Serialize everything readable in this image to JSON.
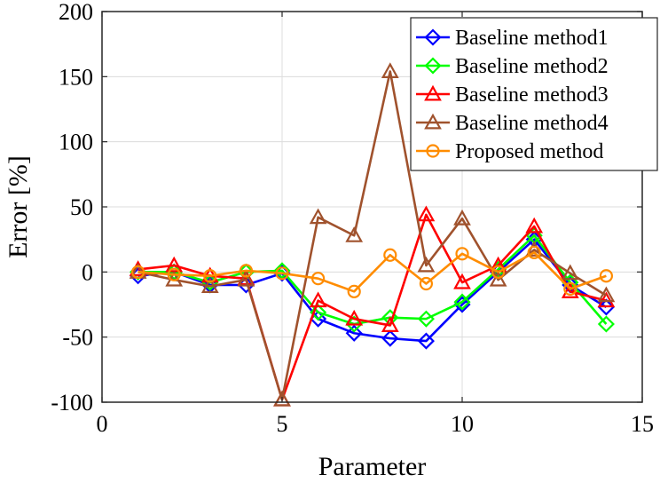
{
  "chart_data": {
    "type": "line",
    "xlabel": "Parameter",
    "ylabel": "Error [%]",
    "xlim": [
      0,
      15
    ],
    "ylim": [
      -100,
      200
    ],
    "xticks": [
      0,
      5,
      10,
      15
    ],
    "yticks": [
      -100,
      -50,
      0,
      50,
      100,
      150,
      200
    ],
    "grid": true,
    "legend_position": "top-right",
    "series": [
      {
        "name": "Baseline method1",
        "color": "#0000ff",
        "marker": "diamond",
        "x": [
          1,
          2,
          3,
          4,
          5,
          6,
          7,
          8,
          9,
          10,
          11,
          12,
          13,
          14
        ],
        "values": [
          -3,
          0,
          -10,
          -10,
          -1,
          -36,
          -47,
          -51,
          -53,
          -25,
          0,
          25,
          -10,
          -27
        ]
      },
      {
        "name": "Baseline method2",
        "color": "#00ff00",
        "marker": "diamond",
        "x": [
          1,
          2,
          3,
          4,
          5,
          6,
          7,
          8,
          9,
          10,
          11,
          12,
          13,
          14
        ],
        "values": [
          0,
          0,
          -8,
          0,
          1,
          -31,
          -40,
          -35,
          -36,
          -23,
          2,
          28,
          -8,
          -40
        ]
      },
      {
        "name": "Baseline method3",
        "color": "#ff0000",
        "marker": "triangle",
        "x": [
          1,
          2,
          3,
          4,
          5,
          6,
          7,
          8,
          9,
          10,
          11,
          12,
          13,
          14
        ],
        "values": [
          2,
          5,
          -3,
          -5,
          -98,
          -22,
          -36,
          -41,
          44,
          -8,
          5,
          35,
          -15,
          -22
        ]
      },
      {
        "name": "Baseline method4",
        "color": "#a0522d",
        "marker": "triangle",
        "x": [
          1,
          2,
          3,
          4,
          5,
          6,
          7,
          8,
          9,
          10,
          11,
          12,
          13,
          14
        ],
        "values": [
          0,
          -6,
          -11,
          -6,
          -98,
          42,
          28,
          154,
          5,
          41,
          -6,
          17,
          -1,
          -18
        ]
      },
      {
        "name": "Proposed method",
        "color": "#ff8c00",
        "marker": "circle",
        "x": [
          1,
          2,
          3,
          4,
          5,
          6,
          7,
          8,
          9,
          10,
          11,
          12,
          13,
          14
        ],
        "values": [
          0,
          -2,
          -3,
          1,
          -1,
          -5,
          -15,
          13,
          -9,
          14,
          0,
          15,
          -13,
          -3
        ]
      }
    ]
  }
}
